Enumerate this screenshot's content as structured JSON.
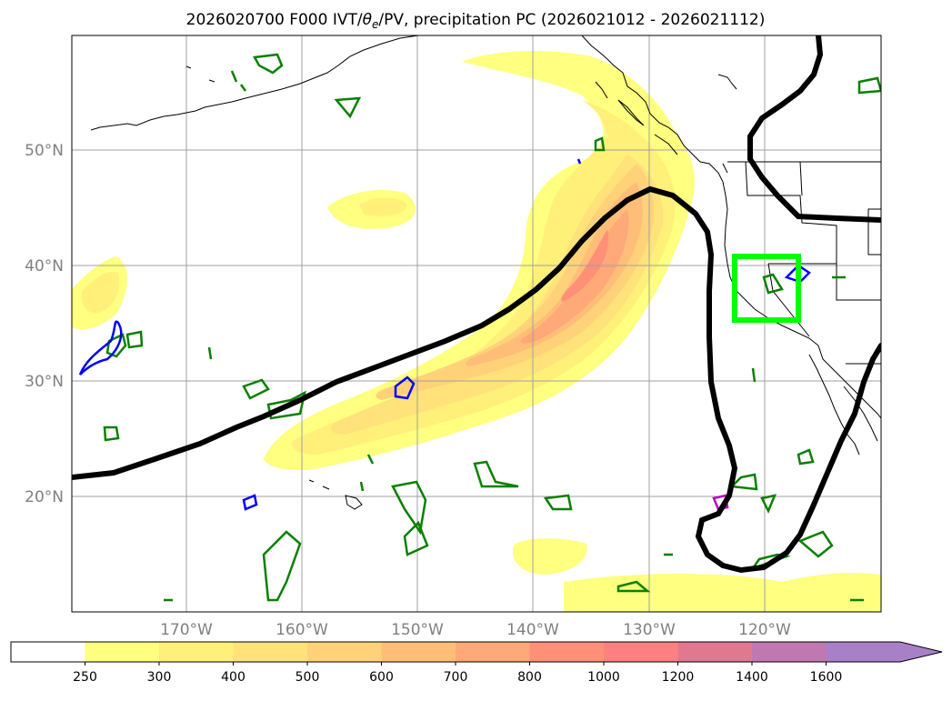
{
  "title_prefix": "2026020700 F000 IVT/",
  "title_theta": "θ",
  "title_sub": "e",
  "title_suffix": "/PV, precipitation PC (2026021012 - 2026021112)",
  "lon_labels": [
    "170°W",
    "160°W",
    "150°W",
    "140°W",
    "130°W",
    "120°W"
  ],
  "lat_labels": [
    "50°N",
    "40°N",
    "30°N",
    "20°N"
  ],
  "colorbar": {
    "ticks": [
      "250",
      "300",
      "400",
      "500",
      "600",
      "700",
      "800",
      "1000",
      "1200",
      "1400",
      "1600"
    ],
    "colors": [
      "#ffffff",
      "#ffff80",
      "#fff07a",
      "#ffe27a",
      "#ffd27a",
      "#ffbe78",
      "#ffa878",
      "#ff9078",
      "#ff8080",
      "#e07890",
      "#c078b0",
      "#a880c8"
    ],
    "extend": "max"
  }
}
